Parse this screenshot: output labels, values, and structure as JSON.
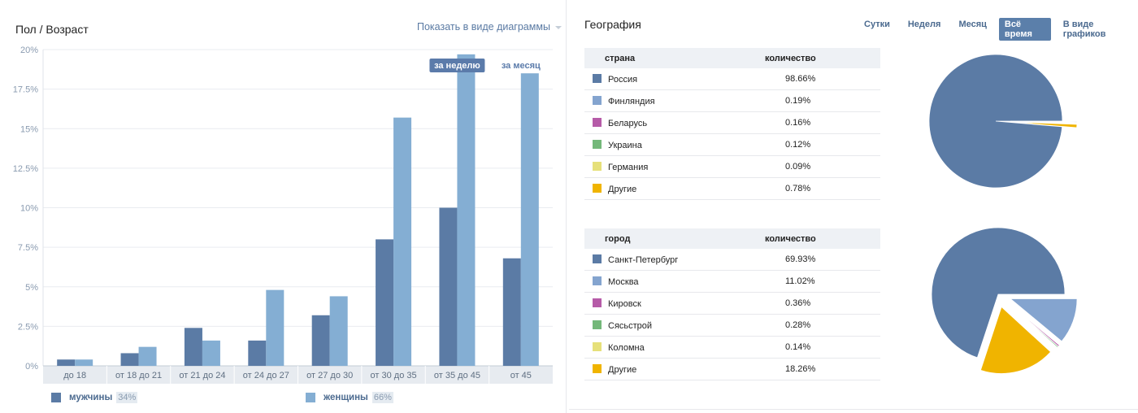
{
  "gender_age": {
    "title": "Пол / Возраст",
    "toggle_label": "Показать в виде диаграммы",
    "legend": [
      {
        "label": "мужчины",
        "percent": "34%",
        "color": "#5b7ba5"
      },
      {
        "label": "женщины",
        "percent": "66%",
        "color": "#84aed3"
      }
    ],
    "badges": {
      "week": "за неделю",
      "month": "за месяц"
    }
  },
  "chart_data": {
    "type": "bar",
    "categories": [
      "до 18",
      "от 18 до 21",
      "от 21 до 24",
      "от 24 до 27",
      "от 27 до 30",
      "от 30 до 35",
      "от 35 до 45",
      "от 45"
    ],
    "series": [
      {
        "name": "мужчины",
        "values": [
          0.4,
          0.8,
          2.4,
          1.6,
          3.2,
          8.0,
          10.0,
          6.8
        ]
      },
      {
        "name": "женщины",
        "values": [
          0.4,
          1.2,
          1.6,
          4.8,
          4.4,
          15.7,
          19.7,
          18.5
        ]
      }
    ],
    "ylim": [
      0,
      20
    ],
    "yticks": [
      "0%",
      "2.5%",
      "5%",
      "7.5%",
      "10%",
      "12.5%",
      "15%",
      "17.5%",
      "20%"
    ],
    "grid": true,
    "legend_position": "bottom"
  },
  "geography": {
    "title": "География",
    "tabs": [
      {
        "label": "Сутки",
        "active": false
      },
      {
        "label": "Неделя",
        "active": false
      },
      {
        "label": "Месяц",
        "active": false
      },
      {
        "label": "Всё время",
        "active": true
      },
      {
        "label": "В виде графиков",
        "active": false
      }
    ],
    "country": {
      "header_name": "страна",
      "header_value": "количество",
      "rows": [
        {
          "name": "Россия",
          "value": "98.66%",
          "color": "#5b7ba5",
          "share": 98.66
        },
        {
          "name": "Финляндия",
          "value": "0.19%",
          "color": "#84a4cf",
          "share": 0.19
        },
        {
          "name": "Беларусь",
          "value": "0.16%",
          "color": "#b65ba8",
          "share": 0.16
        },
        {
          "name": "Украина",
          "value": "0.12%",
          "color": "#74b87a",
          "share": 0.12
        },
        {
          "name": "Германия",
          "value": "0.09%",
          "color": "#e6e07a",
          "share": 0.09
        },
        {
          "name": "Другие",
          "value": "0.78%",
          "color": "#f0b400",
          "share": 0.78
        }
      ]
    },
    "city": {
      "header_name": "город",
      "header_value": "количество",
      "rows": [
        {
          "name": "Санкт-Петербург",
          "value": "69.93%",
          "color": "#5b7ba5",
          "share": 69.93
        },
        {
          "name": "Москва",
          "value": "11.02%",
          "color": "#84a4cf",
          "share": 11.02
        },
        {
          "name": "Кировск",
          "value": "0.36%",
          "color": "#b65ba8",
          "share": 0.36
        },
        {
          "name": "Сясьстрой",
          "value": "0.28%",
          "color": "#74b87a",
          "share": 0.28
        },
        {
          "name": "Коломна",
          "value": "0.14%",
          "color": "#e6e07a",
          "share": 0.14
        },
        {
          "name": "Другие",
          "value": "18.26%",
          "color": "#f0b400",
          "share": 18.26
        }
      ]
    }
  }
}
